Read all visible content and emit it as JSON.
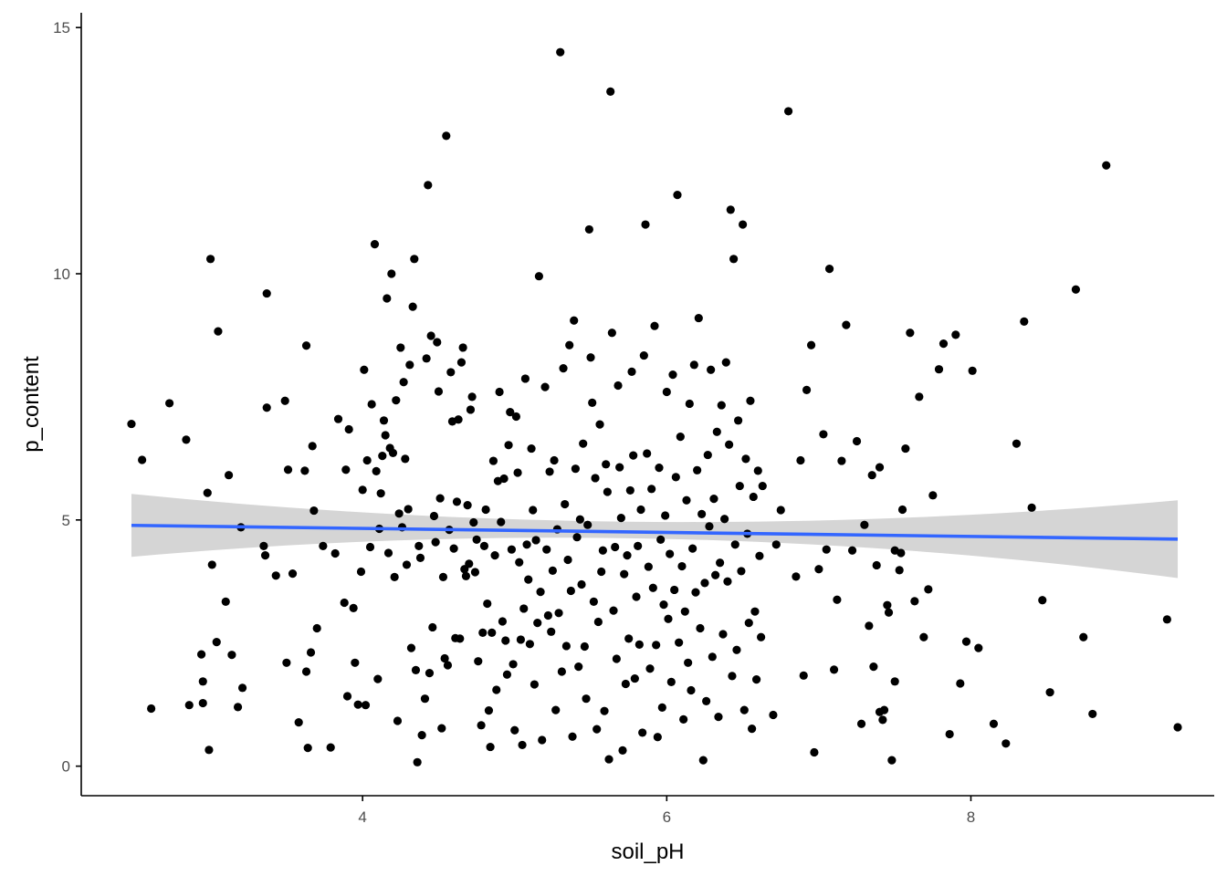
{
  "chart_data": {
    "type": "scatter",
    "title": "",
    "xlabel": "soil_pH",
    "ylabel": "p_content",
    "xlim": [
      2.15,
      9.6
    ],
    "ylim": [
      -0.6,
      15.3
    ],
    "xticks": [
      4,
      6,
      8
    ],
    "xtick_labels": [
      "4",
      "6",
      "8"
    ],
    "yticks": [
      0,
      5,
      10,
      15
    ],
    "ytick_labels": [
      "0",
      "5",
      "10",
      "15"
    ],
    "grid": false,
    "legend": "none",
    "colors": {
      "points": "#000000",
      "fit_line": "#3366ff",
      "confidence_band": "#d3d3d3",
      "axis": "#000000",
      "tick_label": "#4d4d4d"
    },
    "fit": {
      "method": "linear",
      "x_range": [
        2.48,
        9.36
      ],
      "y_at_start": 4.89,
      "y_at_end": 4.61,
      "ci_lower_start": 4.25,
      "ci_upper_start": 5.53,
      "ci_lower_end": 3.82,
      "ci_upper_end": 5.4,
      "ci_lower_mid": 4.62,
      "ci_upper_mid": 4.96
    },
    "points": [
      [
        2.48,
        6.95
      ],
      [
        2.55,
        6.22
      ],
      [
        2.61,
        1.17
      ],
      [
        2.73,
        7.37
      ],
      [
        2.84,
        6.63
      ],
      [
        2.86,
        1.24
      ],
      [
        2.94,
        2.27
      ],
      [
        2.95,
        1.72
      ],
      [
        2.95,
        1.28
      ],
      [
        2.98,
        5.55
      ],
      [
        2.99,
        0.33
      ],
      [
        3.0,
        10.3
      ],
      [
        3.01,
        4.09
      ],
      [
        3.04,
        2.52
      ],
      [
        3.05,
        8.83
      ],
      [
        3.12,
        5.91
      ],
      [
        3.1,
        3.34
      ],
      [
        3.14,
        2.26
      ],
      [
        3.18,
        1.2
      ],
      [
        3.2,
        4.85
      ],
      [
        3.21,
        1.59
      ],
      [
        3.35,
        4.47
      ],
      [
        3.36,
        4.28
      ],
      [
        3.37,
        9.6
      ],
      [
        3.37,
        7.28
      ],
      [
        3.43,
        3.87
      ],
      [
        3.49,
        7.42
      ],
      [
        3.5,
        2.1
      ],
      [
        3.51,
        6.02
      ],
      [
        3.54,
        3.91
      ],
      [
        3.58,
        0.89
      ],
      [
        3.62,
        6.0
      ],
      [
        3.63,
        1.92
      ],
      [
        3.63,
        8.54
      ],
      [
        3.64,
        0.37
      ],
      [
        3.66,
        2.31
      ],
      [
        3.67,
        6.5
      ],
      [
        3.68,
        5.19
      ],
      [
        3.7,
        2.8
      ],
      [
        3.74,
        4.47
      ],
      [
        3.79,
        0.38
      ],
      [
        3.82,
        4.32
      ],
      [
        3.84,
        7.05
      ],
      [
        3.88,
        3.32
      ],
      [
        3.89,
        6.02
      ],
      [
        3.9,
        1.42
      ],
      [
        3.91,
        6.84
      ],
      [
        3.94,
        3.21
      ],
      [
        3.95,
        2.1
      ],
      [
        3.97,
        1.25
      ],
      [
        3.99,
        3.95
      ],
      [
        4.0,
        5.61
      ],
      [
        4.01,
        8.05
      ],
      [
        4.02,
        1.24
      ],
      [
        4.03,
        6.21
      ],
      [
        4.05,
        4.45
      ],
      [
        4.06,
        7.35
      ],
      [
        4.08,
        10.6
      ],
      [
        4.09,
        5.99
      ],
      [
        4.1,
        1.77
      ],
      [
        4.11,
        4.82
      ],
      [
        4.12,
        5.54
      ],
      [
        4.13,
        6.3
      ],
      [
        4.14,
        7.02
      ],
      [
        4.15,
        6.72
      ],
      [
        4.16,
        9.5
      ],
      [
        4.17,
        4.33
      ],
      [
        4.18,
        6.46
      ],
      [
        4.19,
        10.0
      ],
      [
        4.2,
        6.36
      ],
      [
        4.21,
        3.84
      ],
      [
        4.22,
        7.43
      ],
      [
        4.23,
        0.92
      ],
      [
        4.24,
        5.13
      ],
      [
        4.25,
        8.5
      ],
      [
        4.26,
        4.85
      ],
      [
        4.27,
        7.8
      ],
      [
        4.28,
        6.24
      ],
      [
        4.29,
        4.09
      ],
      [
        4.3,
        5.22
      ],
      [
        4.31,
        8.15
      ],
      [
        4.32,
        2.4
      ],
      [
        4.33,
        9.33
      ],
      [
        4.34,
        10.3
      ],
      [
        4.35,
        1.95
      ],
      [
        4.36,
        0.08
      ],
      [
        4.37,
        4.47
      ],
      [
        4.38,
        4.23
      ],
      [
        4.39,
        0.63
      ],
      [
        4.41,
        1.37
      ],
      [
        4.42,
        8.28
      ],
      [
        4.43,
        11.8
      ],
      [
        4.44,
        1.89
      ],
      [
        4.45,
        8.74
      ],
      [
        4.46,
        2.82
      ],
      [
        4.47,
        5.08
      ],
      [
        4.48,
        4.55
      ],
      [
        4.49,
        8.61
      ],
      [
        4.5,
        7.61
      ],
      [
        4.51,
        5.44
      ],
      [
        4.52,
        0.77
      ],
      [
        4.53,
        3.84
      ],
      [
        4.54,
        2.19
      ],
      [
        4.55,
        12.8
      ],
      [
        4.56,
        2.05
      ],
      [
        4.57,
        4.8
      ],
      [
        4.58,
        8.0
      ],
      [
        4.59,
        7.0
      ],
      [
        4.6,
        4.42
      ],
      [
        4.61,
        2.6
      ],
      [
        4.62,
        5.37
      ],
      [
        4.63,
        7.04
      ],
      [
        4.64,
        2.59
      ],
      [
        4.65,
        8.2
      ],
      [
        4.66,
        8.5
      ],
      [
        4.67,
        4.0
      ],
      [
        4.68,
        3.86
      ],
      [
        4.69,
        5.3
      ],
      [
        4.7,
        4.11
      ],
      [
        4.71,
        7.24
      ],
      [
        4.72,
        7.5
      ],
      [
        4.73,
        4.95
      ],
      [
        4.74,
        3.94
      ],
      [
        4.75,
        4.6
      ],
      [
        4.76,
        2.13
      ],
      [
        4.78,
        0.83
      ],
      [
        4.79,
        2.71
      ],
      [
        4.8,
        4.47
      ],
      [
        4.81,
        5.21
      ],
      [
        4.82,
        3.3
      ],
      [
        4.83,
        1.13
      ],
      [
        4.84,
        0.39
      ],
      [
        4.85,
        2.71
      ],
      [
        4.86,
        6.2
      ],
      [
        4.87,
        4.28
      ],
      [
        4.88,
        1.55
      ],
      [
        4.89,
        5.79
      ],
      [
        4.9,
        7.6
      ],
      [
        4.91,
        4.96
      ],
      [
        4.92,
        2.94
      ],
      [
        4.93,
        5.84
      ],
      [
        4.94,
        2.55
      ],
      [
        4.95,
        1.86
      ],
      [
        4.96,
        6.52
      ],
      [
        4.97,
        7.19
      ],
      [
        4.98,
        4.4
      ],
      [
        4.99,
        2.07
      ],
      [
        5.0,
        0.73
      ],
      [
        5.01,
        7.1
      ],
      [
        5.02,
        5.96
      ],
      [
        5.03,
        4.14
      ],
      [
        5.04,
        2.57
      ],
      [
        5.05,
        0.43
      ],
      [
        5.06,
        3.2
      ],
      [
        5.07,
        7.87
      ],
      [
        5.08,
        4.5
      ],
      [
        5.09,
        3.79
      ],
      [
        5.1,
        2.48
      ],
      [
        5.11,
        6.45
      ],
      [
        5.12,
        5.2
      ],
      [
        5.13,
        1.66
      ],
      [
        5.14,
        4.59
      ],
      [
        5.15,
        2.91
      ],
      [
        5.16,
        9.95
      ],
      [
        5.17,
        3.54
      ],
      [
        5.18,
        0.53
      ],
      [
        5.2,
        7.7
      ],
      [
        5.21,
        4.4
      ],
      [
        5.22,
        3.06
      ],
      [
        5.23,
        5.98
      ],
      [
        5.24,
        2.73
      ],
      [
        5.25,
        3.97
      ],
      [
        5.26,
        6.21
      ],
      [
        5.27,
        1.14
      ],
      [
        5.28,
        4.81
      ],
      [
        5.29,
        3.11
      ],
      [
        5.3,
        14.5
      ],
      [
        5.31,
        1.92
      ],
      [
        5.32,
        8.08
      ],
      [
        5.33,
        5.32
      ],
      [
        5.34,
        2.44
      ],
      [
        5.35,
        4.19
      ],
      [
        5.36,
        8.55
      ],
      [
        5.37,
        3.56
      ],
      [
        5.38,
        0.6
      ],
      [
        5.39,
        9.05
      ],
      [
        5.4,
        6.04
      ],
      [
        5.41,
        4.65
      ],
      [
        5.42,
        2.02
      ],
      [
        5.43,
        5.01
      ],
      [
        5.44,
        3.69
      ],
      [
        5.45,
        6.55
      ],
      [
        5.46,
        2.43
      ],
      [
        5.47,
        1.37
      ],
      [
        5.48,
        4.9
      ],
      [
        5.49,
        10.9
      ],
      [
        5.5,
        8.3
      ],
      [
        5.51,
        7.38
      ],
      [
        5.52,
        3.34
      ],
      [
        5.53,
        5.85
      ],
      [
        5.54,
        0.75
      ],
      [
        5.55,
        2.93
      ],
      [
        5.56,
        6.94
      ],
      [
        5.57,
        3.95
      ],
      [
        5.58,
        4.38
      ],
      [
        5.59,
        1.12
      ],
      [
        5.6,
        6.13
      ],
      [
        5.61,
        5.57
      ],
      [
        5.62,
        0.14
      ],
      [
        5.63,
        13.7
      ],
      [
        5.64,
        8.8
      ],
      [
        5.65,
        3.16
      ],
      [
        5.66,
        4.45
      ],
      [
        5.67,
        2.18
      ],
      [
        5.68,
        7.73
      ],
      [
        5.69,
        6.07
      ],
      [
        5.7,
        5.04
      ],
      [
        5.71,
        0.32
      ],
      [
        5.72,
        3.9
      ],
      [
        5.73,
        1.67
      ],
      [
        5.74,
        4.28
      ],
      [
        5.75,
        2.59
      ],
      [
        5.76,
        5.6
      ],
      [
        5.77,
        8.01
      ],
      [
        5.78,
        6.31
      ],
      [
        5.79,
        1.78
      ],
      [
        5.8,
        3.44
      ],
      [
        5.81,
        4.47
      ],
      [
        5.82,
        2.47
      ],
      [
        5.83,
        5.21
      ],
      [
        5.84,
        0.68
      ],
      [
        5.85,
        8.34
      ],
      [
        5.86,
        11.0
      ],
      [
        5.87,
        6.35
      ],
      [
        5.88,
        4.05
      ],
      [
        5.89,
        1.98
      ],
      [
        5.9,
        5.63
      ],
      [
        5.91,
        3.62
      ],
      [
        5.92,
        8.94
      ],
      [
        5.93,
        2.46
      ],
      [
        5.94,
        0.59
      ],
      [
        5.95,
        6.06
      ],
      [
        5.96,
        4.6
      ],
      [
        5.97,
        1.19
      ],
      [
        5.98,
        3.28
      ],
      [
        5.99,
        5.09
      ],
      [
        6.0,
        7.6
      ],
      [
        6.01,
        2.99
      ],
      [
        6.02,
        4.31
      ],
      [
        6.03,
        1.71
      ],
      [
        6.04,
        7.95
      ],
      [
        6.05,
        3.58
      ],
      [
        6.06,
        5.87
      ],
      [
        6.07,
        11.6
      ],
      [
        6.08,
        2.51
      ],
      [
        6.09,
        6.69
      ],
      [
        6.1,
        4.06
      ],
      [
        6.11,
        0.95
      ],
      [
        6.12,
        3.14
      ],
      [
        6.13,
        5.4
      ],
      [
        6.14,
        2.1
      ],
      [
        6.15,
        7.36
      ],
      [
        6.16,
        1.54
      ],
      [
        6.17,
        4.42
      ],
      [
        6.18,
        8.15
      ],
      [
        6.19,
        3.53
      ],
      [
        6.2,
        6.01
      ],
      [
        6.21,
        9.1
      ],
      [
        6.22,
        2.8
      ],
      [
        6.23,
        5.12
      ],
      [
        6.24,
        0.12
      ],
      [
        6.25,
        3.72
      ],
      [
        6.26,
        1.32
      ],
      [
        6.27,
        6.32
      ],
      [
        6.28,
        4.87
      ],
      [
        6.29,
        8.05
      ],
      [
        6.3,
        2.22
      ],
      [
        6.31,
        5.43
      ],
      [
        6.32,
        3.88
      ],
      [
        6.33,
        6.79
      ],
      [
        6.34,
        1.0
      ],
      [
        6.35,
        4.13
      ],
      [
        6.36,
        7.33
      ],
      [
        6.37,
        2.68
      ],
      [
        6.38,
        5.02
      ],
      [
        6.39,
        8.2
      ],
      [
        6.4,
        3.75
      ],
      [
        6.41,
        6.53
      ],
      [
        6.42,
        11.3
      ],
      [
        6.43,
        1.83
      ],
      [
        6.44,
        10.3
      ],
      [
        6.45,
        4.5
      ],
      [
        6.46,
        2.36
      ],
      [
        6.47,
        7.02
      ],
      [
        6.48,
        5.69
      ],
      [
        6.49,
        3.96
      ],
      [
        6.5,
        11.0
      ],
      [
        6.51,
        1.14
      ],
      [
        6.52,
        6.24
      ],
      [
        6.53,
        4.72
      ],
      [
        6.54,
        2.91
      ],
      [
        6.55,
        7.42
      ],
      [
        6.56,
        0.76
      ],
      [
        6.57,
        5.47
      ],
      [
        6.58,
        3.14
      ],
      [
        6.59,
        1.76
      ],
      [
        6.6,
        6.0
      ],
      [
        6.61,
        4.27
      ],
      [
        6.62,
        2.62
      ],
      [
        6.63,
        5.69
      ],
      [
        6.7,
        1.04
      ],
      [
        6.72,
        4.5
      ],
      [
        6.75,
        5.2
      ],
      [
        6.8,
        13.3
      ],
      [
        6.85,
        3.85
      ],
      [
        6.88,
        6.21
      ],
      [
        6.9,
        1.84
      ],
      [
        6.92,
        7.64
      ],
      [
        6.95,
        8.55
      ],
      [
        6.97,
        0.28
      ],
      [
        7.0,
        4.0
      ],
      [
        7.03,
        6.74
      ],
      [
        7.05,
        4.4
      ],
      [
        7.07,
        10.1
      ],
      [
        7.1,
        1.96
      ],
      [
        7.12,
        3.38
      ],
      [
        7.15,
        6.2
      ],
      [
        7.18,
        8.96
      ],
      [
        7.22,
        4.38
      ],
      [
        7.25,
        6.6
      ],
      [
        7.28,
        0.86
      ],
      [
        7.3,
        4.9
      ],
      [
        7.33,
        2.85
      ],
      [
        7.35,
        5.91
      ],
      [
        7.38,
        4.08
      ],
      [
        7.4,
        6.07
      ],
      [
        7.43,
        1.14
      ],
      [
        7.45,
        3.27
      ],
      [
        7.48,
        0.12
      ],
      [
        7.5,
        4.38
      ],
      [
        7.53,
        3.98
      ],
      [
        7.55,
        5.21
      ],
      [
        7.57,
        6.45
      ],
      [
        7.6,
        8.8
      ],
      [
        7.63,
        3.35
      ],
      [
        7.66,
        7.5
      ],
      [
        7.69,
        2.62
      ],
      [
        7.72,
        3.59
      ],
      [
        7.75,
        5.5
      ],
      [
        7.79,
        8.06
      ],
      [
        7.82,
        8.58
      ],
      [
        7.86,
        0.65
      ],
      [
        7.9,
        8.76
      ],
      [
        7.93,
        1.68
      ],
      [
        7.97,
        2.53
      ],
      [
        8.01,
        8.03
      ],
      [
        8.05,
        2.4
      ],
      [
        8.15,
        0.86
      ],
      [
        8.23,
        0.46
      ],
      [
        8.3,
        6.55
      ],
      [
        8.35,
        9.03
      ],
      [
        8.4,
        5.25
      ],
      [
        8.47,
        3.37
      ],
      [
        8.52,
        1.5
      ],
      [
        8.69,
        9.68
      ],
      [
        8.74,
        2.62
      ],
      [
        8.8,
        1.06
      ],
      [
        8.89,
        12.2
      ],
      [
        9.29,
        2.98
      ],
      [
        9.36,
        0.79
      ],
      [
        7.4,
        1.1
      ],
      [
        7.42,
        0.94
      ],
      [
        7.46,
        3.12
      ],
      [
        7.5,
        1.72
      ],
      [
        7.36,
        2.02
      ],
      [
        7.54,
        4.33
      ]
    ]
  }
}
